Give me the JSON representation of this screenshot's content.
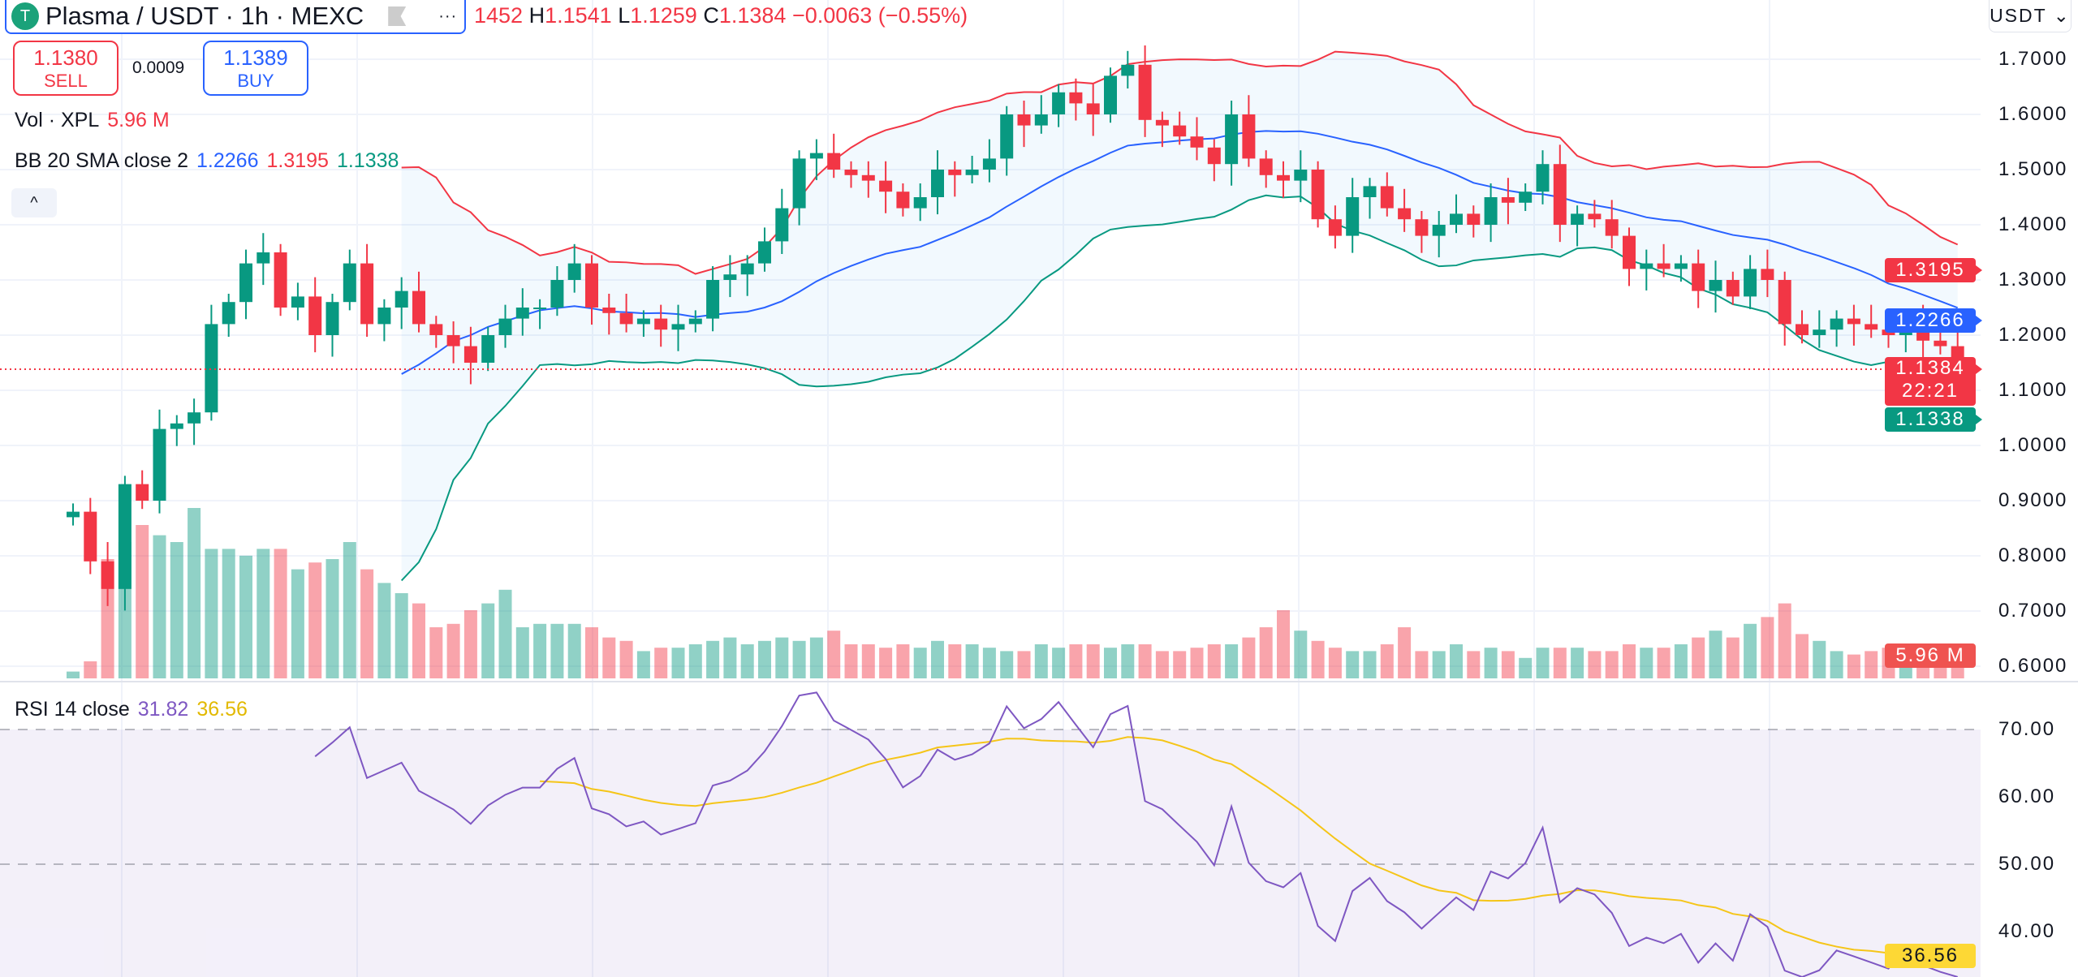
{
  "header": {
    "title": "Plasma / USDT · 1h · MEXC",
    "logo_letter": "T",
    "more": "···",
    "ohlc": {
      "o_partial": "1452",
      "h_label": "H",
      "h": "1.1541",
      "l_label": "L",
      "l": "1.1259",
      "c_label": "C",
      "c": "1.1384",
      "change": "−0.0063 (−0.55%)"
    }
  },
  "trade": {
    "sell_price": "1.1380",
    "sell_label": "SELL",
    "spread": "0.0009",
    "buy_price": "1.1389",
    "buy_label": "BUY"
  },
  "legends": {
    "vol_label": "Vol · XPL",
    "vol_value": "5.96 M",
    "bb_label": "BB 20 SMA close 2",
    "bb_basis": "1.2266",
    "bb_upper": "1.3195",
    "bb_lower": "1.1338",
    "rsi_label": "RSI 14 close",
    "rsi_value": "31.82",
    "rsi_sma": "36.56",
    "collapse_icon": "^"
  },
  "axis": {
    "currency": "USDT ⌄",
    "price_ticks": [
      "1.7000",
      "1.6000",
      "1.5000",
      "1.4000",
      "1.3000",
      "1.2000",
      "1.1000",
      "1.0000",
      "0.9000",
      "0.8000",
      "0.7000",
      "0.6000"
    ],
    "rsi_ticks": [
      "70.00",
      "60.00",
      "50.00",
      "40.00"
    ],
    "tags": {
      "upper": "1.3195",
      "basis": "1.2266",
      "last": "1.1384",
      "countdown": "22:21",
      "lower": "1.1338",
      "volume": "5.96 M",
      "rsi_sma": "36.56"
    }
  },
  "colors": {
    "up": "#089981",
    "down": "#f23645",
    "basis": "#2962ff",
    "rsi": "#7e57c2",
    "rsi_sma": "#f5c518"
  },
  "chart_data": {
    "type": "candlestick",
    "title": "Plasma / USDT · 1h · MEXC",
    "ylim": [
      0.6,
      1.72
    ],
    "first_open": 0.87,
    "close": [
      0.88,
      0.79,
      0.74,
      0.93,
      0.9,
      1.03,
      1.04,
      1.06,
      1.22,
      1.26,
      1.33,
      1.35,
      1.25,
      1.27,
      1.2,
      1.26,
      1.33,
      1.22,
      1.25,
      1.28,
      1.22,
      1.2,
      1.18,
      1.15,
      1.2,
      1.23,
      1.25,
      1.25,
      1.3,
      1.33,
      1.25,
      1.24,
      1.22,
      1.23,
      1.21,
      1.22,
      1.23,
      1.3,
      1.31,
      1.33,
      1.37,
      1.43,
      1.52,
      1.53,
      1.5,
      1.49,
      1.48,
      1.46,
      1.43,
      1.45,
      1.5,
      1.49,
      1.5,
      1.52,
      1.6,
      1.58,
      1.6,
      1.64,
      1.62,
      1.6,
      1.67,
      1.69,
      1.59,
      1.58,
      1.56,
      1.54,
      1.51,
      1.6,
      1.52,
      1.49,
      1.48,
      1.5,
      1.41,
      1.38,
      1.45,
      1.47,
      1.43,
      1.41,
      1.38,
      1.4,
      1.42,
      1.4,
      1.45,
      1.44,
      1.46,
      1.51,
      1.4,
      1.42,
      1.41,
      1.38,
      1.32,
      1.33,
      1.32,
      1.33,
      1.28,
      1.3,
      1.27,
      1.32,
      1.3,
      1.22,
      1.2,
      1.21,
      1.23,
      1.22,
      1.21,
      1.2,
      1.22,
      1.19,
      1.18,
      1.14
    ],
    "volume_m": [
      2,
      5,
      35,
      40,
      45,
      42,
      40,
      50,
      38,
      38,
      36,
      38,
      38,
      32,
      34,
      35,
      40,
      32,
      28,
      25,
      22,
      15,
      16,
      20,
      22,
      26,
      15,
      16,
      16,
      16,
      15,
      12,
      11,
      8,
      9,
      9,
      10,
      11,
      12,
      10,
      11,
      12,
      11,
      12,
      14,
      10,
      10,
      9,
      10,
      9,
      11,
      10,
      10,
      9,
      8,
      8,
      10,
      9,
      10,
      10,
      9,
      10,
      10,
      8,
      8,
      9,
      10,
      10,
      12,
      15,
      20,
      14,
      11,
      9,
      8,
      8,
      10,
      15,
      8,
      8,
      10,
      8,
      9,
      8,
      6,
      9,
      9,
      9,
      8,
      8,
      10,
      9,
      9,
      10,
      12,
      14,
      12,
      16,
      18,
      22,
      13,
      11,
      8,
      7,
      8,
      9,
      10,
      7,
      8,
      6
    ],
    "bb": {
      "length": 20,
      "mult": 2
    },
    "rsi": {
      "length": 14,
      "ylim": [
        30,
        75
      ],
      "levels": [
        70,
        50
      ]
    }
  }
}
